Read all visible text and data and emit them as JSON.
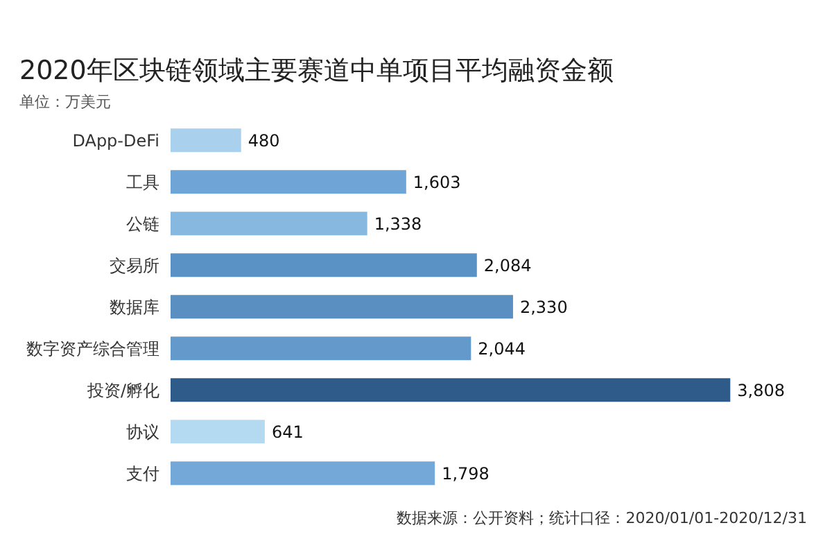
{
  "chart_data": {
    "type": "bar",
    "orientation": "horizontal",
    "title": "2020年区块链领域主要赛道中单项目平均融资金额",
    "subtitle": "单位：万美元",
    "categories": [
      "DApp-DeFi",
      "工具",
      "公链",
      "交易所",
      "数据库",
      "数字资产综合管理",
      "投资/孵化",
      "协议",
      "支付"
    ],
    "values": [
      480,
      1603,
      1338,
      2084,
      2330,
      2044,
      3808,
      641,
      1798
    ],
    "colors": [
      "#a9d0ec",
      "#6ea5d6",
      "#86b8e0",
      "#5b92c6",
      "#5a8fc2",
      "#6499cb",
      "#2e5b8a",
      "#b4daf2",
      "#73a8d8"
    ],
    "value_labels": [
      "480",
      "1,603",
      "1,338",
      "2,084",
      "2,330",
      "2,044",
      "3,808",
      "641",
      "1,798"
    ],
    "tick_labels": "y",
    "annotations": [
      "数据来源：公开资料；统计口径：2020/01/01-2020/12/31"
    ]
  }
}
